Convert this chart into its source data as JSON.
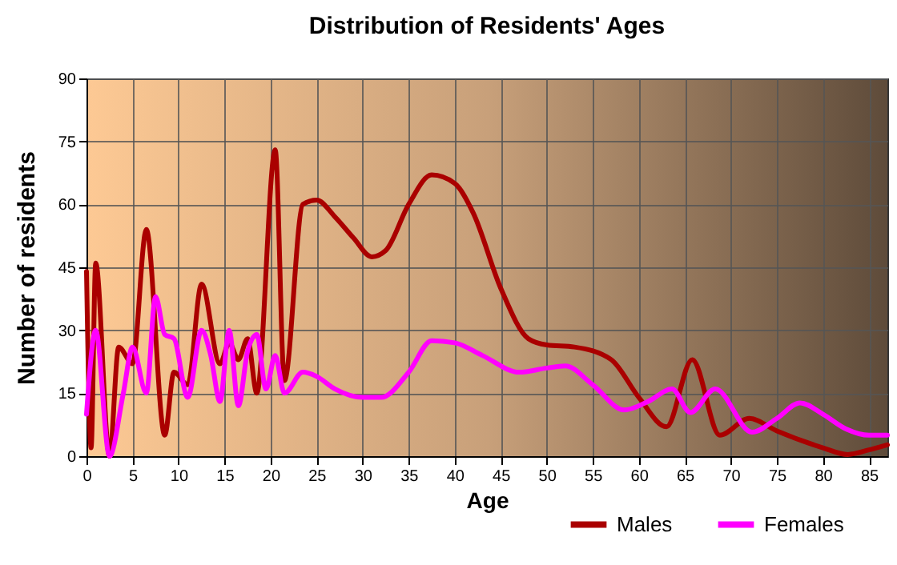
{
  "chart_data": {
    "type": "line",
    "title": "Distribution of Residents' Ages",
    "xlabel": "Age",
    "ylabel": "Number of residents",
    "xlim": [
      0,
      87
    ],
    "xticks": [
      0,
      5,
      10,
      15,
      20,
      25,
      30,
      35,
      40,
      45,
      50,
      55,
      60,
      65,
      70,
      75,
      80,
      85
    ],
    "ylim": [
      0,
      90
    ],
    "yticks": [
      0,
      15,
      30,
      45,
      60,
      75,
      90
    ],
    "grid": true,
    "legend": "bottom",
    "line_style": "solid",
    "marker": "none",
    "series": [
      {
        "name": "Males",
        "color": "#aa0000",
        "x": [
          0,
          0.5,
          1,
          2.5,
          3.5,
          5,
          6.5,
          8.5,
          9.5,
          11,
          12.5,
          14.5,
          15.5,
          16.5,
          17.5,
          18.5,
          20.5,
          21.5,
          23.5,
          25,
          27,
          29,
          31,
          32.5,
          35,
          37.5,
          40,
          42,
          45,
          48,
          50,
          53,
          57,
          60,
          63,
          65.8,
          68.8,
          72,
          75,
          80,
          82.7,
          85,
          87
        ],
        "values": [
          44,
          2,
          46,
          0,
          26,
          22,
          54,
          5,
          20,
          17,
          41,
          22,
          27,
          23,
          28,
          15,
          73,
          18,
          60,
          61,
          57,
          52,
          47.5,
          49,
          60,
          67,
          65,
          58,
          40,
          28,
          26.5,
          26,
          23,
          14,
          7,
          23,
          5,
          9,
          6,
          2,
          0.4,
          1.5,
          2.7
        ]
      },
      {
        "name": "Females",
        "color": "#ff00ff",
        "x": [
          0,
          1,
          2.5,
          4,
          5,
          6.5,
          7.5,
          8.5,
          9.5,
          11,
          12.5,
          13.5,
          14.5,
          15.5,
          16.5,
          17.5,
          18.5,
          19.5,
          20.5,
          21.5,
          23.5,
          25,
          27,
          30,
          32,
          35,
          37.5,
          40,
          43,
          47,
          50,
          52,
          55,
          58.4,
          61,
          63.6,
          65.6,
          68.3,
          72.3,
          75,
          77.5,
          80,
          82.5,
          85,
          87
        ],
        "values": [
          10,
          30,
          0,
          15,
          26,
          15,
          38,
          29,
          28,
          14,
          30,
          24,
          13,
          30,
          12,
          25,
          29,
          16,
          24,
          15,
          20,
          19,
          16,
          14,
          14,
          20,
          27.5,
          27,
          24,
          20,
          21,
          21.5,
          17,
          11,
          13,
          16,
          10.4,
          16,
          5.7,
          9,
          12.7,
          10,
          6.5,
          5,
          5
        ]
      }
    ]
  }
}
